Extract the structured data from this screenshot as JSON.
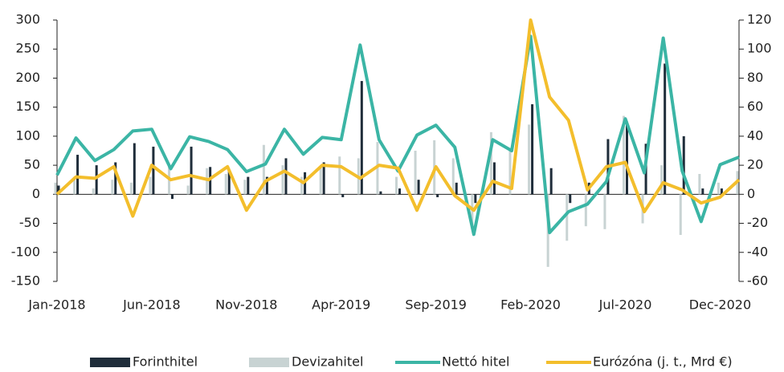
{
  "chart_data": {
    "type": "bar-line",
    "categories": [
      "Jan-2018",
      null,
      null,
      null,
      null,
      "Jun-2018",
      null,
      null,
      null,
      null,
      "Nov-2018",
      null,
      null,
      null,
      null,
      "Apr-2019",
      null,
      null,
      null,
      null,
      "Sep-2019",
      null,
      null,
      null,
      null,
      "Feb-2020",
      null,
      null,
      null,
      null,
      "Jul-2020",
      null,
      null,
      null,
      null,
      "Dec-2020",
      null
    ],
    "series": [
      {
        "name": "Forinthitel",
        "type": "bar",
        "color": "#1f2d3a",
        "values": [
          15,
          68,
          50,
          55,
          88,
          82,
          -8,
          82,
          47,
          40,
          30,
          30,
          62,
          38,
          55,
          -5,
          195,
          5,
          10,
          25,
          -5,
          20,
          -15,
          55,
          0,
          155,
          45,
          -15,
          20,
          95,
          125,
          87,
          225,
          100,
          10,
          10,
          0
        ]
      },
      {
        "name": "Devizahitel",
        "type": "bar",
        "color": "#c8d3d3",
        "values": [
          20,
          30,
          10,
          25,
          20,
          30,
          52,
          15,
          45,
          35,
          25,
          85,
          50,
          30,
          45,
          65,
          62,
          90,
          30,
          75,
          93,
          62,
          -55,
          107,
          75,
          120,
          -125,
          -80,
          -55,
          -60,
          135,
          -50,
          50,
          -70,
          35,
          20,
          40
        ]
      },
      {
        "name": "Nettó hitel",
        "type": "line",
        "color": "#3bb5a5",
        "values": [
          33,
          97,
          58,
          77,
          109,
          112,
          44,
          99,
          91,
          77,
          39,
          52,
          112,
          69,
          98,
          94,
          257,
          94,
          40,
          102,
          119,
          81,
          -69,
          94,
          75,
          272,
          -66,
          -30,
          -17,
          22,
          130,
          37,
          269,
          40,
          -47,
          51,
          64
        ]
      },
      {
        "name": "Eurózóna (j. t., Mrd €)",
        "type": "line",
        "axis": "y2",
        "color": "#f3be2c",
        "values": [
          0,
          12,
          11,
          19,
          -15,
          20,
          10,
          13,
          10,
          19,
          -11,
          9,
          16,
          8,
          20,
          19,
          11,
          20,
          18,
          -11,
          19,
          -1,
          -11,
          9,
          4,
          120,
          67,
          51,
          3,
          19,
          22,
          -12,
          8,
          3,
          -6,
          -2,
          10
        ]
      }
    ],
    "ylim": [
      -150,
      300
    ],
    "yticks": [
      -150,
      -100,
      -50,
      0,
      50,
      100,
      150,
      200,
      250,
      300
    ],
    "y2lim": [
      -60,
      120
    ],
    "y2ticks": [
      -60,
      -40,
      -20,
      0,
      20,
      40,
      60,
      80,
      100,
      120
    ],
    "legend": "bottom"
  }
}
